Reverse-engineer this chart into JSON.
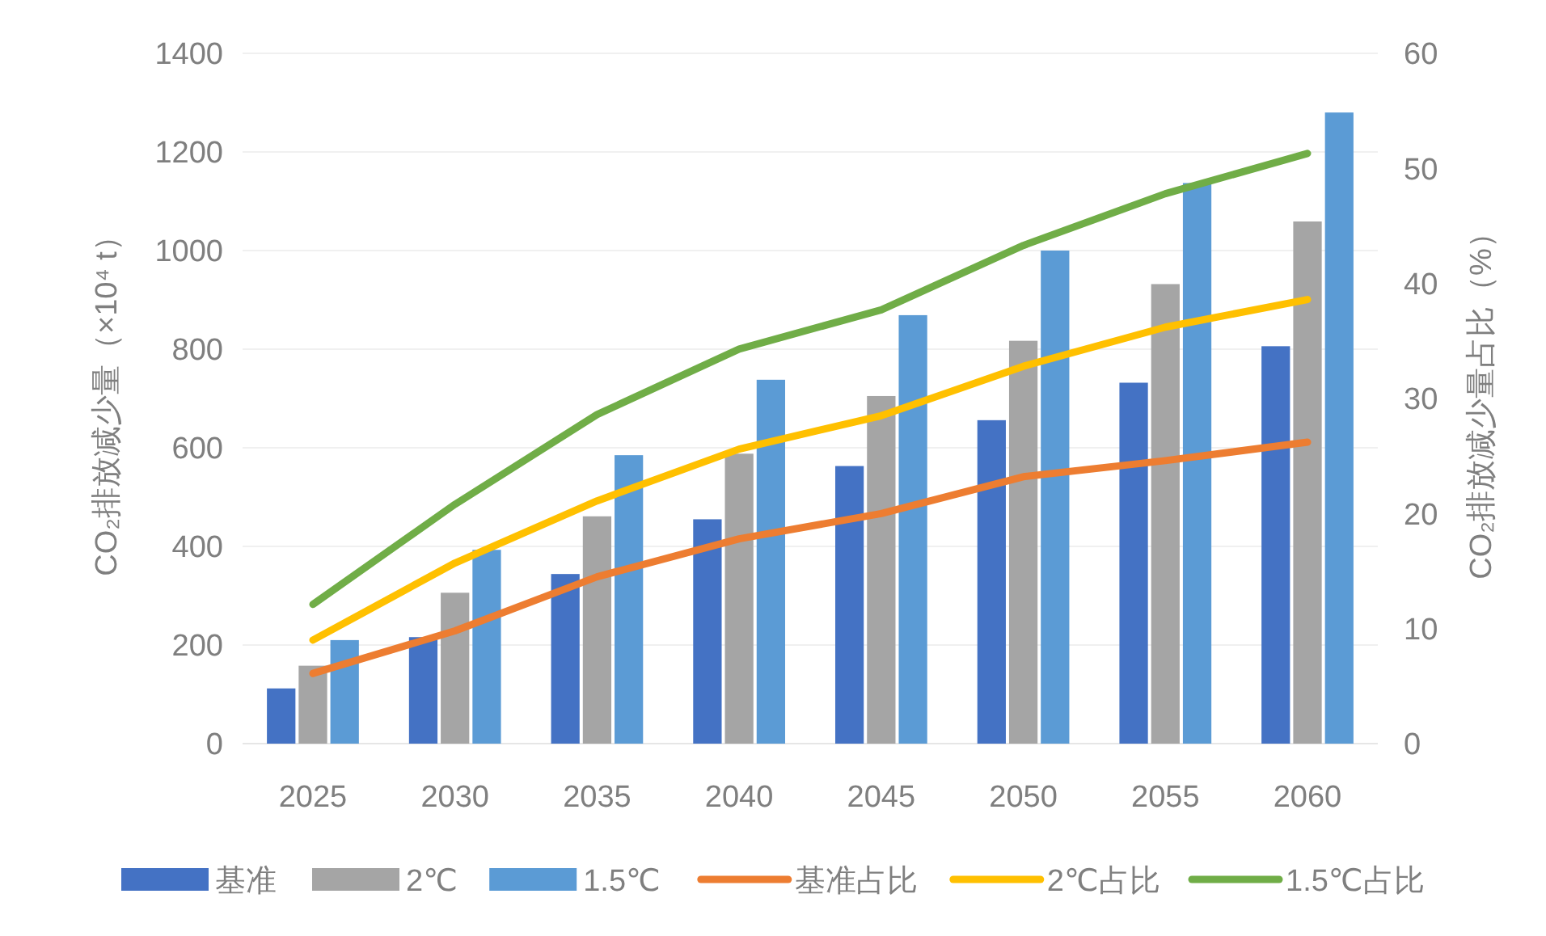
{
  "chart_data": {
    "type": "bar",
    "categories": [
      "2025",
      "2030",
      "2035",
      "2040",
      "2045",
      "2050",
      "2055",
      "2060"
    ],
    "ylabel": "CO₂排放减少量（×10⁴ t）",
    "y2label": "CO₂排放减少量占比（%）",
    "ylim": [
      0,
      1400
    ],
    "yticks": [
      0,
      200,
      400,
      600,
      800,
      1000,
      1200,
      1400
    ],
    "y2lim": [
      0,
      60
    ],
    "y2ticks": [
      0,
      10,
      20,
      30,
      40,
      50,
      60
    ],
    "grid": "y",
    "legend": "bottom",
    "series": [
      {
        "name": "基准",
        "color": "#4472c4",
        "values": [
          112,
          216,
          344,
          455,
          563,
          656,
          732,
          806
        ]
      },
      {
        "name": "2℃",
        "color": "#a5a5a5",
        "values": [
          158,
          306,
          461,
          588,
          705,
          817,
          932,
          1059
        ]
      },
      {
        "name": "1.5℃",
        "color": "#5b9bd5",
        "values": [
          210,
          393,
          585,
          738,
          869,
          1000,
          1137,
          1280
        ]
      },
      {
        "name": "基准占比",
        "type": "line",
        "axis": "y2",
        "color": "#ed7d31",
        "values": [
          6.1,
          9.8,
          14.5,
          17.8,
          20.0,
          23.2,
          24.6,
          26.2
        ]
      },
      {
        "name": "2℃占比",
        "type": "line",
        "axis": "y2",
        "color": "#ffc000",
        "values": [
          9.0,
          15.7,
          21.1,
          25.6,
          28.5,
          32.8,
          36.2,
          38.6
        ]
      },
      {
        "name": "1.5℃占比",
        "type": "line",
        "axis": "y2",
        "color": "#70ad47",
        "values": [
          12.1,
          20.8,
          28.6,
          34.3,
          37.7,
          43.3,
          47.8,
          51.3
        ]
      }
    ]
  }
}
